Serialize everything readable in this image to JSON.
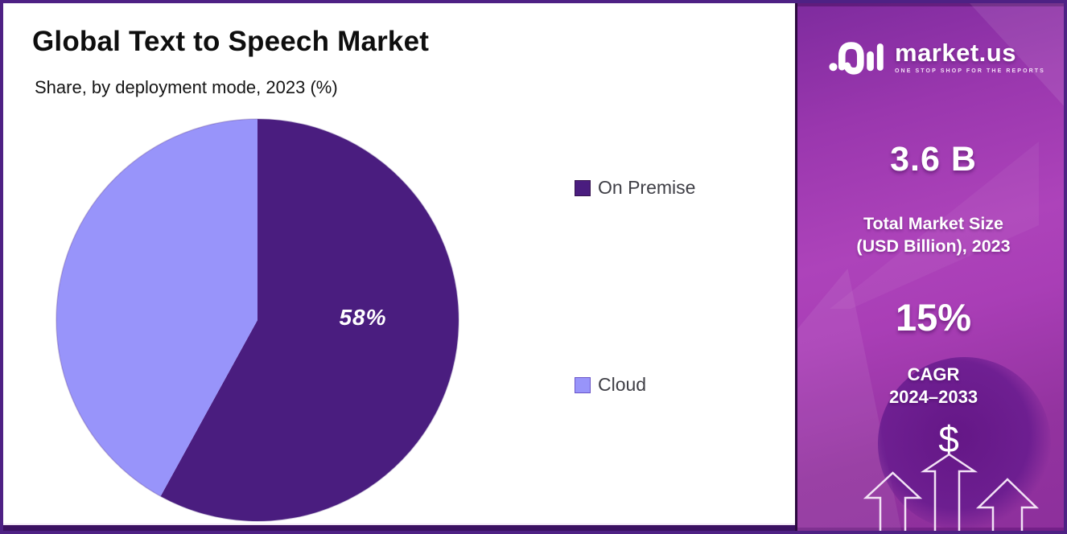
{
  "chart": {
    "title": "Global Text to Speech Market",
    "subtitle": "Share, by deployment mode, 2023 (%)"
  },
  "chart_data": {
    "type": "pie",
    "title": "Global Text to Speech Market",
    "subtitle": "Share, by deployment mode, 2023 (%)",
    "categories": [
      "On Premise",
      "Cloud"
    ],
    "values": [
      58,
      42
    ],
    "colors": [
      "#4a1d7f",
      "#9894fa"
    ],
    "data_labels": [
      "58%",
      ""
    ],
    "start_angle_deg": 0,
    "direction": "clockwise",
    "legend_position": "right"
  },
  "sidebar": {
    "logo": {
      "brand": "market.us",
      "tagline": "ONE STOP SHOP FOR THE REPORTS",
      "icon": "market-us-logo-icon"
    },
    "stat_market_size": {
      "value": "3.6 B",
      "label_line1": "Total Market Size",
      "label_line2": "(USD Billion), 2023"
    },
    "stat_cagr": {
      "value": "15%",
      "label_line1": "CAGR",
      "label_line2": "2024–2033"
    },
    "dollar_symbol": "$",
    "colors": {
      "gradient_top": "#7e2b9e",
      "gradient_mid": "#ad43ba",
      "gradient_bottom": "#8d2f9c",
      "frame_border": "#4e2184",
      "bottom_bar": "#3b1161"
    }
  }
}
